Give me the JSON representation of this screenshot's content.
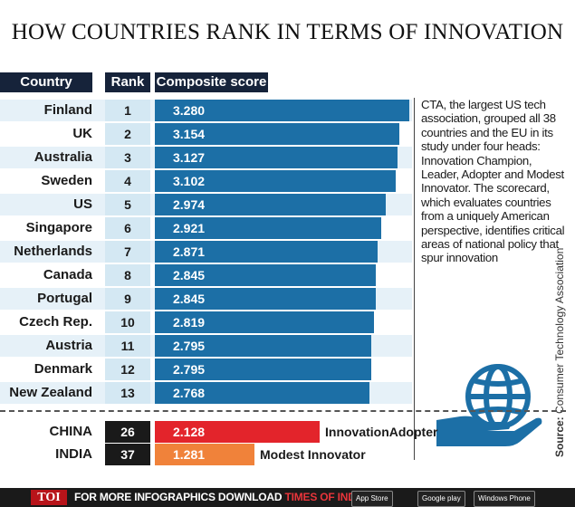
{
  "title": "HOW COUNTRIES RANK IN TERMS OF INNOVATION",
  "header": {
    "country": "Country",
    "rank": "Rank",
    "score": "Composite score"
  },
  "chart_data": {
    "type": "bar",
    "title": "HOW COUNTRIES RANK IN TERMS OF INNOVATION",
    "categories": [
      "Finland",
      "UK",
      "Australia",
      "Sweden",
      "US",
      "Singapore",
      "Netherlands",
      "Canada",
      "Portugal",
      "Czech Rep.",
      "Austria",
      "Denmark",
      "New Zealand",
      "CHINA",
      "INDIA"
    ],
    "rows": [
      {
        "country": "Finland",
        "rank": "1",
        "score": "3.280",
        "value": 3.28
      },
      {
        "country": "UK",
        "rank": "2",
        "score": "3.154",
        "value": 3.154
      },
      {
        "country": "Australia",
        "rank": "3",
        "score": "3.127",
        "value": 3.127
      },
      {
        "country": "Sweden",
        "rank": "4",
        "score": "3.102",
        "value": 3.102
      },
      {
        "country": "US",
        "rank": "5",
        "score": "2.974",
        "value": 2.974
      },
      {
        "country": "Singapore",
        "rank": "6",
        "score": "2.921",
        "value": 2.921
      },
      {
        "country": "Netherlands",
        "rank": "7",
        "score": "2.871",
        "value": 2.871
      },
      {
        "country": "Canada",
        "rank": "8",
        "score": "2.845",
        "value": 2.845
      },
      {
        "country": "Portugal",
        "rank": "9",
        "score": "2.845",
        "value": 2.845
      },
      {
        "country": "Czech Rep.",
        "rank": "10",
        "score": "2.819",
        "value": 2.819
      },
      {
        "country": "Austria",
        "rank": "11",
        "score": "2.795",
        "value": 2.795
      },
      {
        "country": "Denmark",
        "rank": "12",
        "score": "2.795",
        "value": 2.795
      },
      {
        "country": "New Zealand",
        "rank": "13",
        "score": "2.768",
        "value": 2.768
      }
    ],
    "extra_rows": [
      {
        "country": "CHINA",
        "rank": "26",
        "score": "2.128",
        "value": 2.128,
        "label": "InnovationAdopter",
        "color": "#e3242b"
      },
      {
        "country": "INDIA",
        "rank": "37",
        "score": "1.281",
        "value": 1.281,
        "label": "Modest Innovator",
        "color": "#f0823a"
      }
    ],
    "bar_color": "#1c6fa6",
    "rank_cell_color": "#d4e8f3",
    "row_color_even": "#ffffff",
    "row_color_odd": "#e6f1f8",
    "extra_rank_bg": "#1a1a1a"
  },
  "side_text": "CTA, the largest US tech association, grouped all 38 countries and the EU in its study under four heads: Innovation Champion, Leader, Adopter and Modest Innovator. The scorecard, which evaluates countries from a uniquely American perspective, identifies critical areas of national policy that spur innovation",
  "source": {
    "label": "Source:",
    "name": "Consumer Technology Association"
  },
  "icon": "globe-hand-icon",
  "footer": {
    "logo": "TOI",
    "text": "FOR MORE  INFOGRAPHICS DOWNLOAD",
    "highlight": "TIMES OF INDIA APP",
    "stores": [
      "App Store",
      "Google play",
      "Windows Phone"
    ]
  }
}
